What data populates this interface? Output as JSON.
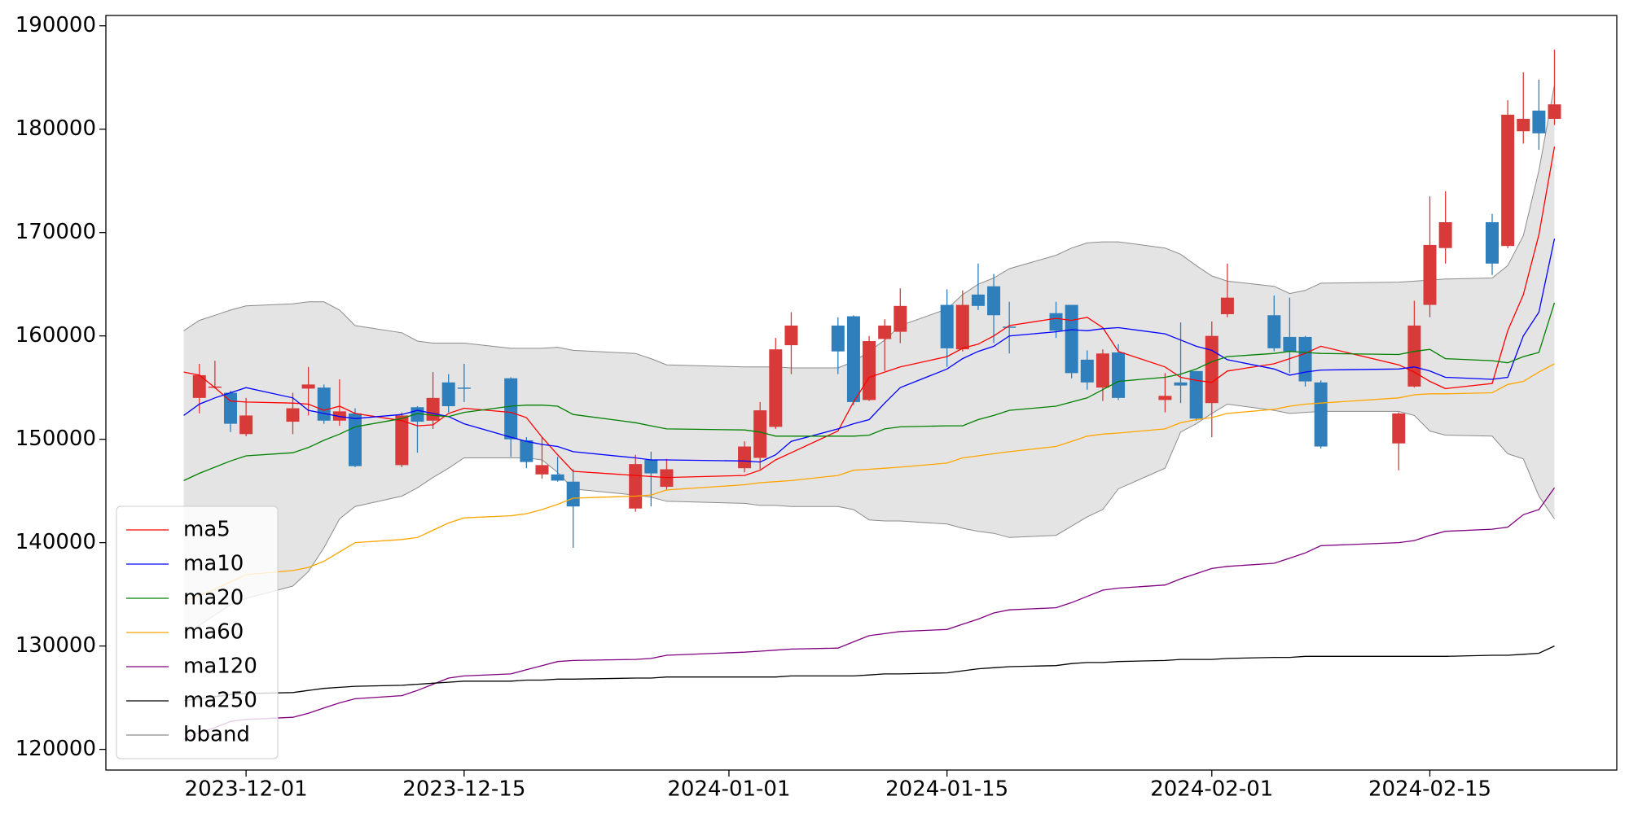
{
  "chart_data": {
    "type": "candlestick",
    "x": [
      "2023-11-27",
      "2023-11-28",
      "2023-11-29",
      "2023-11-30",
      "2023-12-01",
      "2023-12-04",
      "2023-12-05",
      "2023-12-06",
      "2023-12-07",
      "2023-12-08",
      "2023-12-11",
      "2023-12-12",
      "2023-12-13",
      "2023-12-14",
      "2023-12-15",
      "2023-12-18",
      "2023-12-19",
      "2023-12-20",
      "2023-12-21",
      "2023-12-22",
      "2023-12-26",
      "2023-12-27",
      "2023-12-28",
      "2024-01-02",
      "2024-01-03",
      "2024-01-04",
      "2024-01-05",
      "2024-01-08",
      "2024-01-09",
      "2024-01-10",
      "2024-01-11",
      "2024-01-12",
      "2024-01-15",
      "2024-01-16",
      "2024-01-17",
      "2024-01-18",
      "2024-01-19",
      "2024-01-22",
      "2024-01-23",
      "2024-01-24",
      "2024-01-25",
      "2024-01-26",
      "2024-01-29",
      "2024-01-30",
      "2024-01-31",
      "2024-02-01",
      "2024-02-02",
      "2024-02-05",
      "2024-02-06",
      "2024-02-07",
      "2024-02-08",
      "2024-02-13",
      "2024-02-14",
      "2024-02-15",
      "2024-02-16",
      "2024-02-19",
      "2024-02-20",
      "2024-02-21",
      "2024-02-22",
      "2024-02-23"
    ],
    "candles": {
      "up_color": "#d83a3a",
      "down_color": "#2f7fbd",
      "open": [
        null,
        154000,
        155000,
        154500,
        150500,
        151700,
        154900,
        155000,
        151800,
        152500,
        147500,
        153100,
        151800,
        155500,
        155000,
        155900,
        149900,
        146600,
        146600,
        145900,
        143300,
        148000,
        145400,
        147200,
        148200,
        151200,
        159100,
        161000,
        161900,
        153800,
        159700,
        160400,
        163000,
        158700,
        164000,
        164800,
        160900,
        162200,
        163000,
        157700,
        155000,
        158400,
        153800,
        155500,
        156600,
        153500,
        162100,
        162000,
        159900,
        159900,
        155500,
        149600,
        155100,
        163000,
        168500,
        171000,
        168700,
        179800,
        181800,
        181000
      ],
      "high": [
        null,
        157300,
        157600,
        154700,
        154000,
        154500,
        157000,
        155300,
        155800,
        153000,
        152600,
        153200,
        156500,
        156300,
        157300,
        156000,
        150200,
        150200,
        148300,
        147100,
        148500,
        148800,
        148100,
        149800,
        153600,
        159800,
        162300,
        161800,
        162000,
        160000,
        161600,
        164600,
        164500,
        164400,
        167000,
        166000,
        163300,
        163300,
        163000,
        158600,
        158700,
        159200,
        156400,
        161300,
        156600,
        161400,
        167000,
        163900,
        163700,
        160000,
        155700,
        152600,
        163400,
        173500,
        174000,
        171800,
        182800,
        185500,
        184800,
        187700
      ],
      "low": [
        null,
        152500,
        154900,
        150700,
        150300,
        150500,
        152300,
        151500,
        151300,
        147300,
        147300,
        148700,
        151000,
        152600,
        153600,
        148300,
        147200,
        146200,
        145900,
        139500,
        143000,
        143500,
        145100,
        146800,
        147100,
        151000,
        156300,
        156300,
        153300,
        153700,
        156600,
        159300,
        157000,
        158500,
        162500,
        159300,
        158300,
        159800,
        155900,
        154800,
        153700,
        153800,
        152600,
        153500,
        151800,
        150200,
        161800,
        158500,
        156400,
        155100,
        149100,
        147000,
        155000,
        161800,
        167000,
        165900,
        168500,
        178600,
        178000,
        180400
      ],
      "close": [
        null,
        156200,
        155100,
        151500,
        152300,
        153000,
        155300,
        151800,
        152700,
        147400,
        152300,
        151700,
        154000,
        153200,
        154900,
        150000,
        147800,
        147500,
        146000,
        143500,
        147600,
        146700,
        147100,
        149300,
        152800,
        158700,
        161000,
        158500,
        153600,
        159500,
        161000,
        162900,
        158800,
        163000,
        162900,
        162000,
        160800,
        160500,
        156400,
        155500,
        158300,
        154000,
        154200,
        155200,
        152000,
        160000,
        163700,
        158800,
        158500,
        155600,
        149300,
        152500,
        161000,
        168800,
        171000,
        167000,
        181400,
        181000,
        179600,
        182400
      ]
    },
    "series": [
      {
        "name": "ma5",
        "color": "#ff0000",
        "values": [
          156500,
          156200,
          155000,
          153700,
          153600,
          153500,
          153400,
          152800,
          153200,
          152500,
          151800,
          151300,
          151400,
          152500,
          153000,
          152600,
          152100,
          150200,
          148500,
          146900,
          146500,
          146400,
          146300,
          146500,
          147000,
          148000,
          148700,
          150800,
          153600,
          156000,
          156500,
          157000,
          158000,
          158800,
          159200,
          160000,
          161000,
          161700,
          161500,
          161800,
          160800,
          158500,
          157000,
          156000,
          155700,
          155500,
          156600,
          157300,
          157800,
          158300,
          159000,
          157200,
          156500,
          155600,
          154900,
          155400,
          160500,
          164000,
          169800,
          178300
        ]
      },
      {
        "name": "ma10",
        "color": "#0000ff",
        "values": [
          152300,
          153400,
          154000,
          154500,
          155000,
          154000,
          152800,
          152500,
          152200,
          152000,
          152400,
          152800,
          152500,
          152200,
          151500,
          150200,
          149800,
          149500,
          149300,
          148800,
          148200,
          148000,
          148000,
          147900,
          147800,
          148500,
          149800,
          151000,
          151500,
          151900,
          153500,
          155000,
          156800,
          157800,
          158500,
          159000,
          160000,
          160400,
          160600,
          160500,
          160700,
          160800,
          160200,
          159600,
          159000,
          158600,
          157700,
          156800,
          156200,
          156500,
          156700,
          156800,
          157000,
          156600,
          156000,
          155800,
          156000,
          160000,
          162300,
          169400
        ]
      },
      {
        "name": "ma20",
        "color": "#008000",
        "values": [
          146000,
          146700,
          147300,
          147900,
          148400,
          148700,
          149200,
          149900,
          150500,
          151200,
          152000,
          152500,
          152300,
          152200,
          152600,
          153200,
          153300,
          153300,
          153200,
          152400,
          151600,
          151300,
          151000,
          150900,
          150700,
          150300,
          150300,
          150300,
          150300,
          150400,
          151000,
          151200,
          151300,
          151300,
          151900,
          152300,
          152800,
          153200,
          153600,
          154000,
          154800,
          155600,
          156000,
          156300,
          156800,
          157500,
          158000,
          158300,
          158500,
          158400,
          158300,
          158200,
          158500,
          158700,
          157800,
          157600,
          157400,
          158000,
          158400,
          163200
        ]
      },
      {
        "name": "ma60",
        "color": "#ffa500",
        "values": [
          134300,
          134900,
          135500,
          136200,
          136900,
          137300,
          137600,
          138200,
          139100,
          140000,
          140300,
          140500,
          141200,
          141900,
          142400,
          142600,
          142800,
          143200,
          143700,
          144300,
          144500,
          144600,
          145100,
          145600,
          145800,
          145900,
          146000,
          146500,
          147000,
          147100,
          147200,
          147300,
          147700,
          148200,
          148400,
          148600,
          148800,
          149300,
          149800,
          150300,
          150500,
          150600,
          151000,
          151600,
          151900,
          152100,
          152500,
          152900,
          153200,
          153400,
          153500,
          154000,
          154300,
          154400,
          154400,
          154500,
          155300,
          155600,
          156500,
          157300
        ]
      },
      {
        "name": "ma120",
        "color": "#800080",
        "values": [
          121000,
          121600,
          122100,
          122700,
          122900,
          123100,
          123500,
          124000,
          124500,
          124900,
          125200,
          125700,
          126300,
          126900,
          127100,
          127300,
          127700,
          128100,
          128500,
          128600,
          128700,
          128800,
          129100,
          129400,
          129500,
          129600,
          129700,
          129800,
          130400,
          131000,
          131200,
          131400,
          131600,
          132100,
          132600,
          133200,
          133500,
          133700,
          134200,
          134800,
          135400,
          135600,
          135900,
          136500,
          137000,
          137500,
          137700,
          138000,
          138500,
          139000,
          139700,
          140000,
          140200,
          140700,
          141100,
          141300,
          141500,
          142700,
          143200,
          145300
        ]
      },
      {
        "name": "ma250",
        "color": "#000000",
        "values": [
          124700,
          124900,
          125100,
          125300,
          125400,
          125500,
          125700,
          125900,
          126000,
          126100,
          126200,
          126300,
          126400,
          126500,
          126600,
          126600,
          126700,
          126700,
          126800,
          126800,
          126900,
          126900,
          127000,
          127000,
          127000,
          127000,
          127100,
          127100,
          127100,
          127200,
          127300,
          127300,
          127400,
          127600,
          127800,
          127900,
          128000,
          128100,
          128300,
          128400,
          128400,
          128500,
          128600,
          128700,
          128700,
          128700,
          128800,
          128900,
          128900,
          129000,
          129000,
          129000,
          129000,
          129000,
          129000,
          129100,
          129100,
          129200,
          129300,
          130000
        ]
      }
    ],
    "band": {
      "name": "bband",
      "color": "#8c8c8c",
      "fill": "#e4e4e4",
      "upper": [
        160500,
        161500,
        162000,
        162500,
        162900,
        163100,
        163300,
        163300,
        162500,
        161000,
        160300,
        159500,
        159300,
        159300,
        159300,
        158800,
        158800,
        158800,
        158900,
        158600,
        158300,
        157800,
        157200,
        157000,
        157000,
        157000,
        156900,
        156900,
        157500,
        158500,
        159600,
        161000,
        162600,
        164000,
        165000,
        165600,
        166500,
        167800,
        168500,
        169000,
        169100,
        169100,
        168500,
        167900,
        166800,
        165800,
        165300,
        164800,
        164100,
        164400,
        165100,
        165200,
        165300,
        165400,
        165500,
        165600,
        166800,
        169700,
        176000,
        184300
      ],
      "lower": [
        131300,
        132000,
        133000,
        134000,
        134600,
        135800,
        137200,
        139500,
        142300,
        143500,
        144500,
        145300,
        146300,
        147200,
        148200,
        148200,
        148200,
        148000,
        146800,
        145200,
        144600,
        144400,
        144000,
        143800,
        143600,
        143600,
        143500,
        143500,
        143200,
        142200,
        142100,
        142100,
        141800,
        141400,
        141100,
        140900,
        140500,
        140700,
        141600,
        142500,
        143200,
        145200,
        147200,
        150700,
        151500,
        152500,
        153400,
        152800,
        152500,
        152600,
        152700,
        152700,
        152300,
        150800,
        150400,
        150300,
        148600,
        148100,
        144500,
        142300
      ]
    },
    "xlim": [
      "2023-11-22",
      "2024-02-27"
    ],
    "xticks": [
      "2023-12-01",
      "2023-12-15",
      "2024-01-01",
      "2024-01-15",
      "2024-02-01",
      "2024-02-15"
    ],
    "ylim": [
      118000,
      191000
    ],
    "yticks": [
      120000,
      130000,
      140000,
      150000,
      160000,
      170000,
      180000,
      190000
    ],
    "legend": "lower left",
    "grid": false
  }
}
